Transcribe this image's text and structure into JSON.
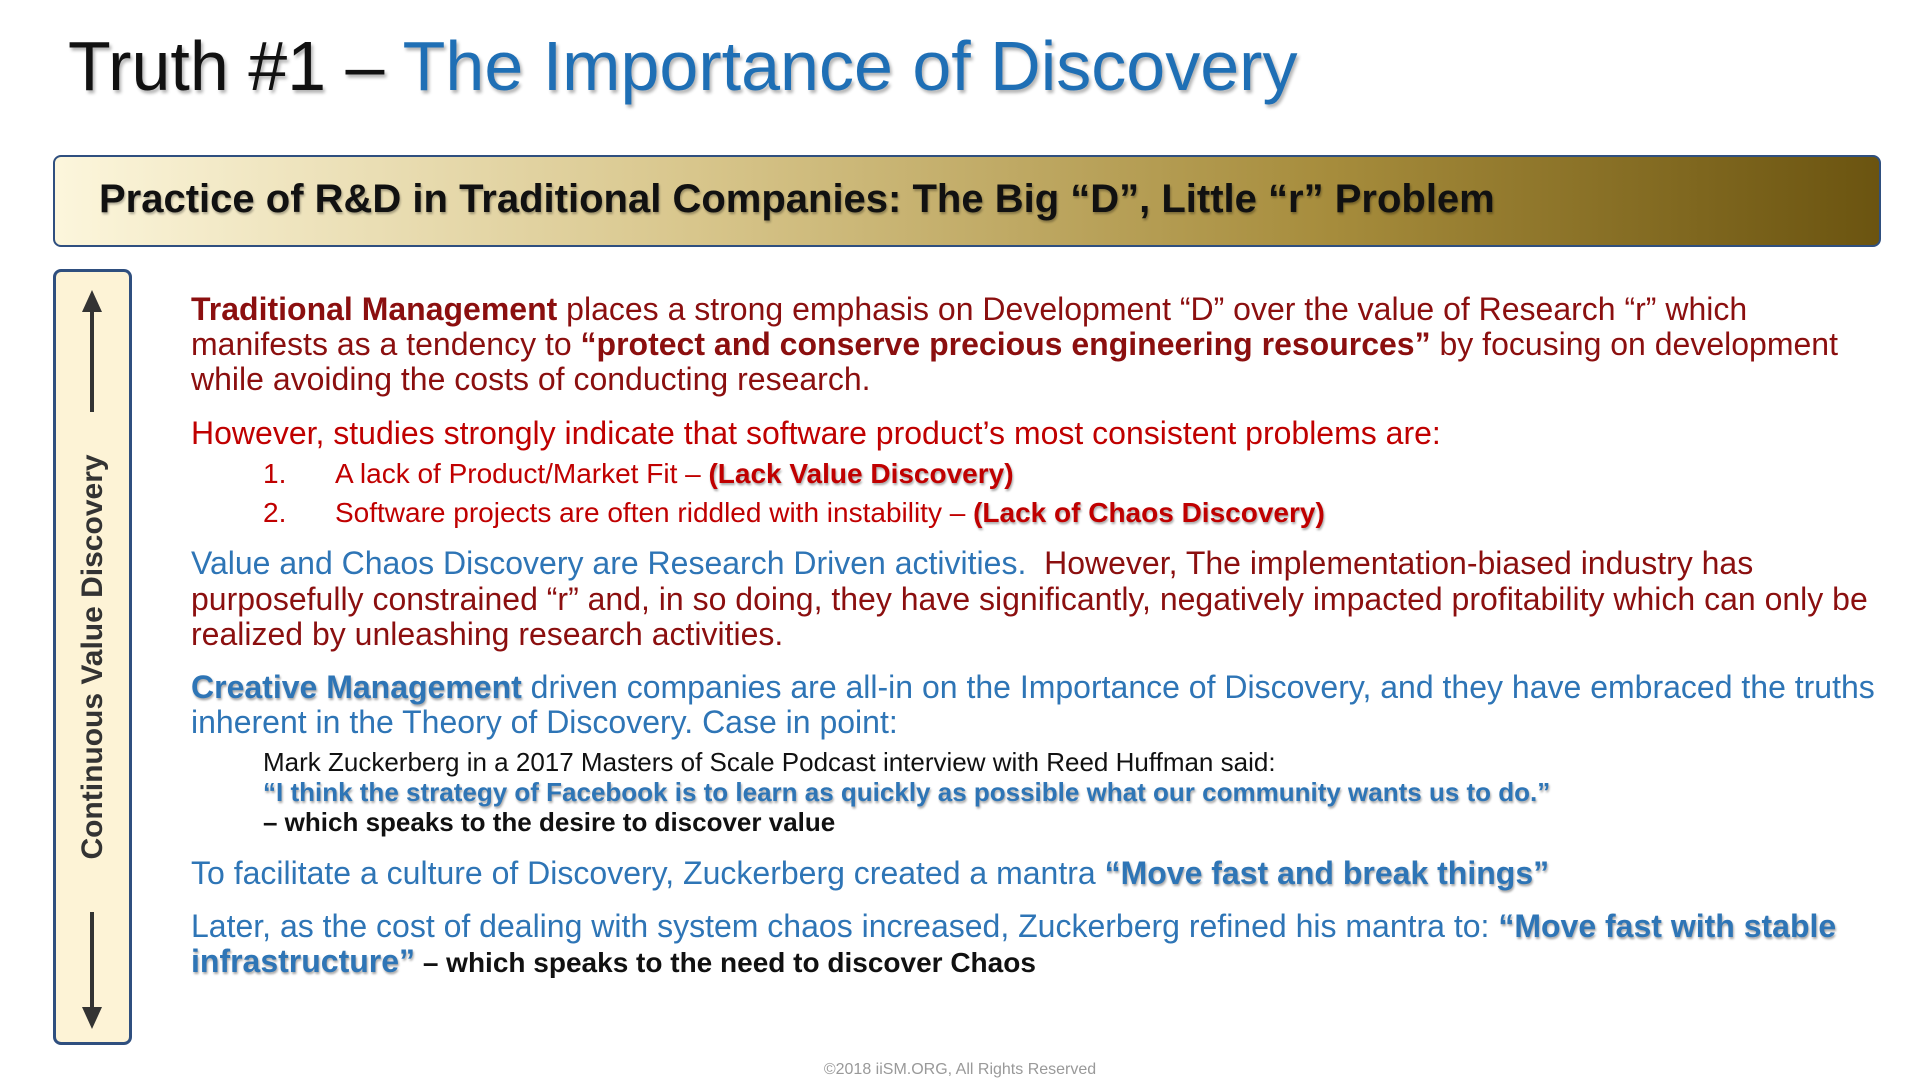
{
  "title": {
    "prefix": "Truth #1 – ",
    "main": "The Importance of Discovery"
  },
  "banner": "Practice of R&D in Traditional Companies: The Big “D”, Little “r” Problem",
  "side_label": "Continuous Value Discovery",
  "body": {
    "p1": [
      "Traditional Management",
      " places a strong emphasis on Development “D” over the value of Research “r” which manifests as a tendency to ",
      "“protect and conserve precious engineering resources”",
      " by focusing on development while avoiding the costs of conducting research."
    ],
    "p2": "However, studies strongly indicate that software product’s most consistent problems are:",
    "list": [
      {
        "number": "1.",
        "text": "A lack of Product/Market Fit – ",
        "note": "(Lack Value Discovery)"
      },
      {
        "number": "2.",
        "text": "Software projects are often riddled with instability – ",
        "note": "(Lack of Chaos Discovery)"
      }
    ],
    "p3": [
      "Value and Chaos Discovery are Research Driven activities.",
      "  However, The implementation-biased industry has purposefully constrained “r” and, in so doing, they have significantly, negatively impacted profitability which can only be realized by unleashing research activities."
    ],
    "p4": [
      "Creative Management",
      " driven companies are all-in on the Importance of Discovery, and they have embraced the truths inherent in the Theory of Discovery.  Case in point:"
    ],
    "quote": {
      "intro": "Mark Zuckerberg in a 2017 Masters of Scale Podcast interview with Reed Huffman said:",
      "quote": "“I think the strategy of Facebook is to learn as quickly as possible what our community wants us to do.”",
      "comment": "– which speaks to the desire to discover value"
    },
    "p5": [
      "To facilitate a culture of Discovery, Zuckerberg created a mantra ",
      "“Move fast and break things”"
    ],
    "p6": [
      "Later, as the cost of dealing with system chaos increased, Zuckerberg refined his mantra to: ",
      "“Move fast with stable infrastructure”",
      " – which speaks to the need to discover Chaos"
    ]
  },
  "footer": "©2018 iiSM.ORG, All Rights Reserved"
}
